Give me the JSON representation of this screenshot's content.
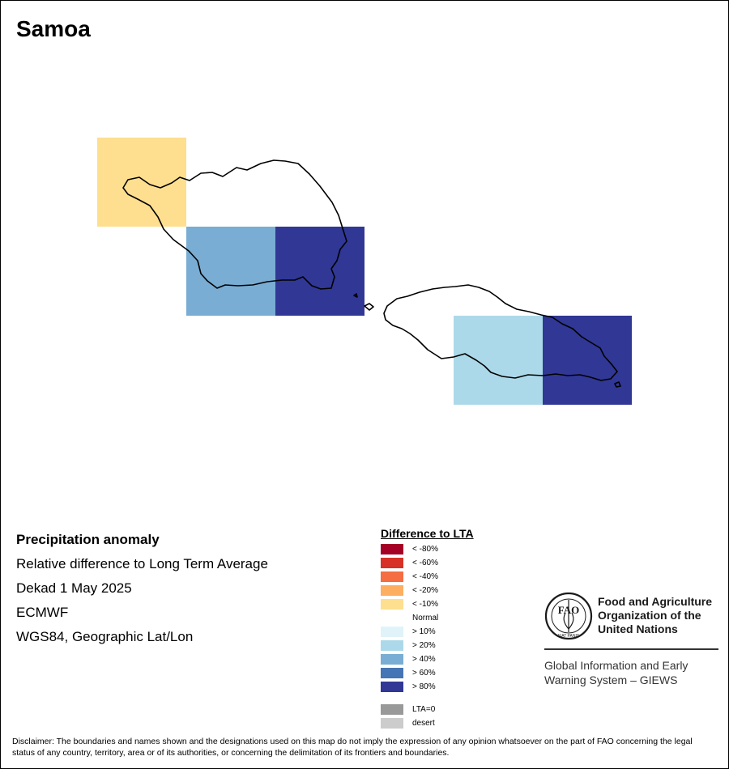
{
  "map": {
    "title": "Samoa",
    "colors": {
      "land_outline": "#000000",
      "background": "#ffffff"
    },
    "grid_cells": [
      {
        "id": "cell-nw-savaii",
        "category": "< -10%",
        "color": "#fddf8f"
      },
      {
        "id": "cell-sw-savaii",
        "category": "> 40%",
        "color": "#79add3"
      },
      {
        "id": "cell-se-savaii",
        "category": "> 80%",
        "color": "#303795"
      },
      {
        "id": "cell-w-upolu",
        "category": "> 20%",
        "color": "#acd9e9"
      },
      {
        "id": "cell-e-upolu",
        "category": "> 80%",
        "color": "#303795"
      }
    ]
  },
  "info": {
    "heading": "Precipitation anomaly",
    "line1": "Relative difference to Long Term Average",
    "line2": "Dekad 1 May 2025",
    "line3": "ECMWF",
    "line4": "WGS84, Geographic Lat/Lon"
  },
  "legend": {
    "title": "Difference to LTA",
    "items": [
      {
        "label": "< -80%",
        "color": "#a50026"
      },
      {
        "label": "< -60%",
        "color": "#d73027"
      },
      {
        "label": "< -40%",
        "color": "#f46d43"
      },
      {
        "label": "< -20%",
        "color": "#fdae61"
      },
      {
        "label": "< -10%",
        "color": "#fddf8f"
      },
      {
        "label": "Normal",
        "color": "#ffffff"
      },
      {
        "label": "> 10%",
        "color": "#e0f3f8"
      },
      {
        "label": "> 20%",
        "color": "#acd9e9"
      },
      {
        "label": "> 40%",
        "color": "#79add3"
      },
      {
        "label": "> 60%",
        "color": "#4575b4"
      },
      {
        "label": "> 80%",
        "color": "#303795"
      }
    ],
    "extra_items": [
      {
        "label": "LTA=0",
        "color": "#999999"
      },
      {
        "label": "desert",
        "color": "#cccccc"
      }
    ]
  },
  "branding": {
    "fao_name": [
      "Food and Agriculture",
      "Organization of the",
      "United Nations"
    ],
    "fao_logo_text": "FAO",
    "fao_motto": "FIAT PANIS",
    "giews": [
      "Global Information and Early",
      "Warning System – GIEWS"
    ]
  },
  "disclaimer": "Disclaimer: The boundaries and names shown and the designations used on this map do not imply the expression of any opinion whatsoever on the part of FAO concerning the legal status of any country, territory, area or of its authorities, or concerning the delimitation of its frontiers and boundaries."
}
